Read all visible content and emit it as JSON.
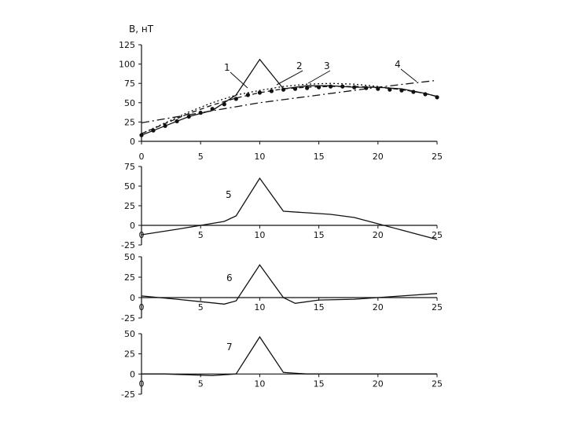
{
  "chart_data": [
    {
      "type": "line",
      "ylabel": "B, нТ",
      "xlim": [
        0,
        25
      ],
      "ylim": [
        0,
        125
      ],
      "xticks": [
        "0",
        "5",
        "10",
        "15",
        "20",
        "25"
      ],
      "yticks": [
        "0",
        "25",
        "50",
        "75",
        "100",
        "125"
      ],
      "series": [
        {
          "name": "1",
          "style": "solid",
          "x": [
            0,
            2,
            4,
            6,
            8,
            10,
            12,
            14,
            16,
            18,
            20,
            22,
            24,
            25
          ],
          "y": [
            8,
            20,
            32,
            40,
            60,
            106,
            68,
            72,
            72,
            70,
            70,
            68,
            62,
            58
          ]
        },
        {
          "name": "2",
          "style": "dotted",
          "x": [
            0,
            2,
            4,
            6,
            8,
            10,
            12,
            14,
            16,
            18,
            20,
            22,
            24,
            25
          ],
          "y": [
            10,
            24,
            38,
            50,
            60,
            66,
            71,
            74,
            75,
            74,
            71,
            67,
            62,
            58
          ]
        },
        {
          "name": "3",
          "style": "dashed",
          "x": [
            0,
            2,
            4,
            6,
            8,
            10,
            12,
            14,
            16,
            18,
            20,
            22,
            24,
            25
          ],
          "y": [
            10,
            23,
            36,
            47,
            56,
            63,
            68,
            70,
            71,
            71,
            70,
            67,
            62,
            58
          ]
        },
        {
          "name": "4",
          "style": "dash-dot",
          "x": [
            0,
            5,
            10,
            15,
            20,
            25
          ],
          "y": [
            24,
            37,
            50,
            60,
            70,
            79
          ]
        },
        {
          "name": "",
          "style": "markers",
          "x": [
            0,
            1,
            2,
            3,
            4,
            5,
            6,
            7,
            8,
            9,
            10,
            11,
            12,
            13,
            14,
            15,
            16,
            17,
            18,
            19,
            20,
            21,
            22,
            23,
            24,
            25
          ],
          "y": [
            8,
            14,
            20,
            26,
            32,
            37,
            42,
            48,
            55,
            60,
            63,
            65,
            67,
            68,
            69,
            70,
            71,
            71,
            70,
            69,
            68,
            67,
            66,
            64,
            61,
            57
          ]
        }
      ],
      "annotations": [
        "1",
        "2",
        "3",
        "4"
      ]
    },
    {
      "type": "line",
      "xlim": [
        0,
        25
      ],
      "ylim": [
        -25,
        75
      ],
      "xticks": [
        "0",
        "5",
        "10",
        "15",
        "20",
        "25"
      ],
      "yticks": [
        "-25",
        "0",
        "25",
        "50",
        "75"
      ],
      "series": [
        {
          "name": "5",
          "x": [
            0,
            3,
            5,
            7,
            8,
            10,
            12,
            14,
            16,
            18,
            20,
            22,
            25
          ],
          "y": [
            -12,
            -5,
            0,
            5,
            12,
            60,
            18,
            16,
            14,
            10,
            2,
            -6,
            -18
          ]
        }
      ]
    },
    {
      "type": "line",
      "xlim": [
        0,
        25
      ],
      "ylim": [
        -25,
        50
      ],
      "xticks": [
        "0",
        "5",
        "10",
        "15",
        "20",
        "25"
      ],
      "yticks": [
        "-25",
        "0",
        "25",
        "50"
      ],
      "series": [
        {
          "name": "6",
          "x": [
            0,
            3,
            5,
            7,
            8,
            10,
            12,
            13,
            15,
            18,
            20,
            22,
            25
          ],
          "y": [
            2,
            -2,
            -5,
            -8,
            -4,
            40,
            0,
            -7,
            -3,
            -2,
            0,
            2,
            5
          ]
        }
      ]
    },
    {
      "type": "line",
      "xlim": [
        0,
        25
      ],
      "ylim": [
        -25,
        50
      ],
      "xticks": [
        "0",
        "5",
        "10",
        "15",
        "20",
        "25"
      ],
      "yticks": [
        "-25",
        "0",
        "25",
        "50"
      ],
      "series": [
        {
          "name": "7",
          "x": [
            0,
            2,
            4,
            6,
            8,
            10,
            12,
            14,
            16,
            18,
            20,
            22,
            25
          ],
          "y": [
            0,
            0,
            -1,
            -2,
            0,
            46,
            2,
            0,
            0,
            0,
            0,
            0,
            0
          ]
        }
      ]
    }
  ]
}
